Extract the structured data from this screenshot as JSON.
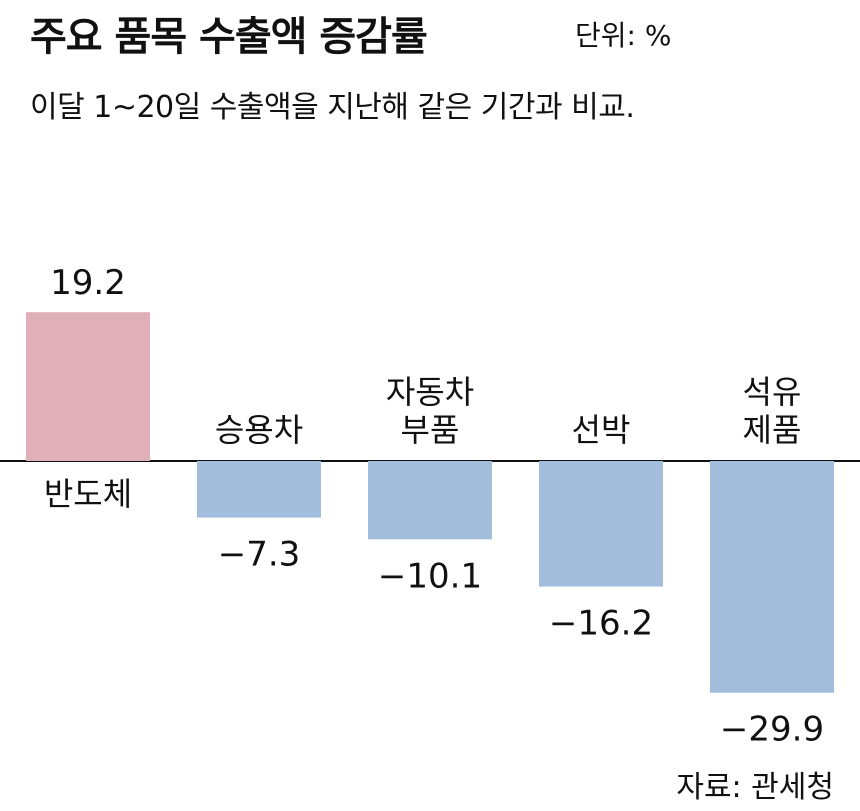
{
  "header": {
    "title": "주요 품목 수출액 증감률",
    "unit": "단위: %",
    "subtitle": "이달 1~20일 수출액을 지난해 같은 기간과 비교."
  },
  "source": "자료: 관세청",
  "colors": {
    "positive": "#e0b0b8",
    "negative": "#a3bedc",
    "baseline": "#111111",
    "text": "#111111",
    "background": "#ffffff"
  },
  "chart_data": {
    "type": "bar",
    "categories": [
      [
        "반도체"
      ],
      [
        "승용차"
      ],
      [
        "자동차",
        "부품"
      ],
      [
        "선박"
      ],
      [
        "석유",
        "제품"
      ]
    ],
    "values": [
      19.2,
      -7.3,
      -10.1,
      -16.2,
      -29.9
    ],
    "value_labels": [
      "19.2",
      "−7.3",
      "−10.1",
      "−16.2",
      "−29.9"
    ],
    "ylim": [
      -30,
      20
    ],
    "grid": false,
    "legend": "none"
  }
}
